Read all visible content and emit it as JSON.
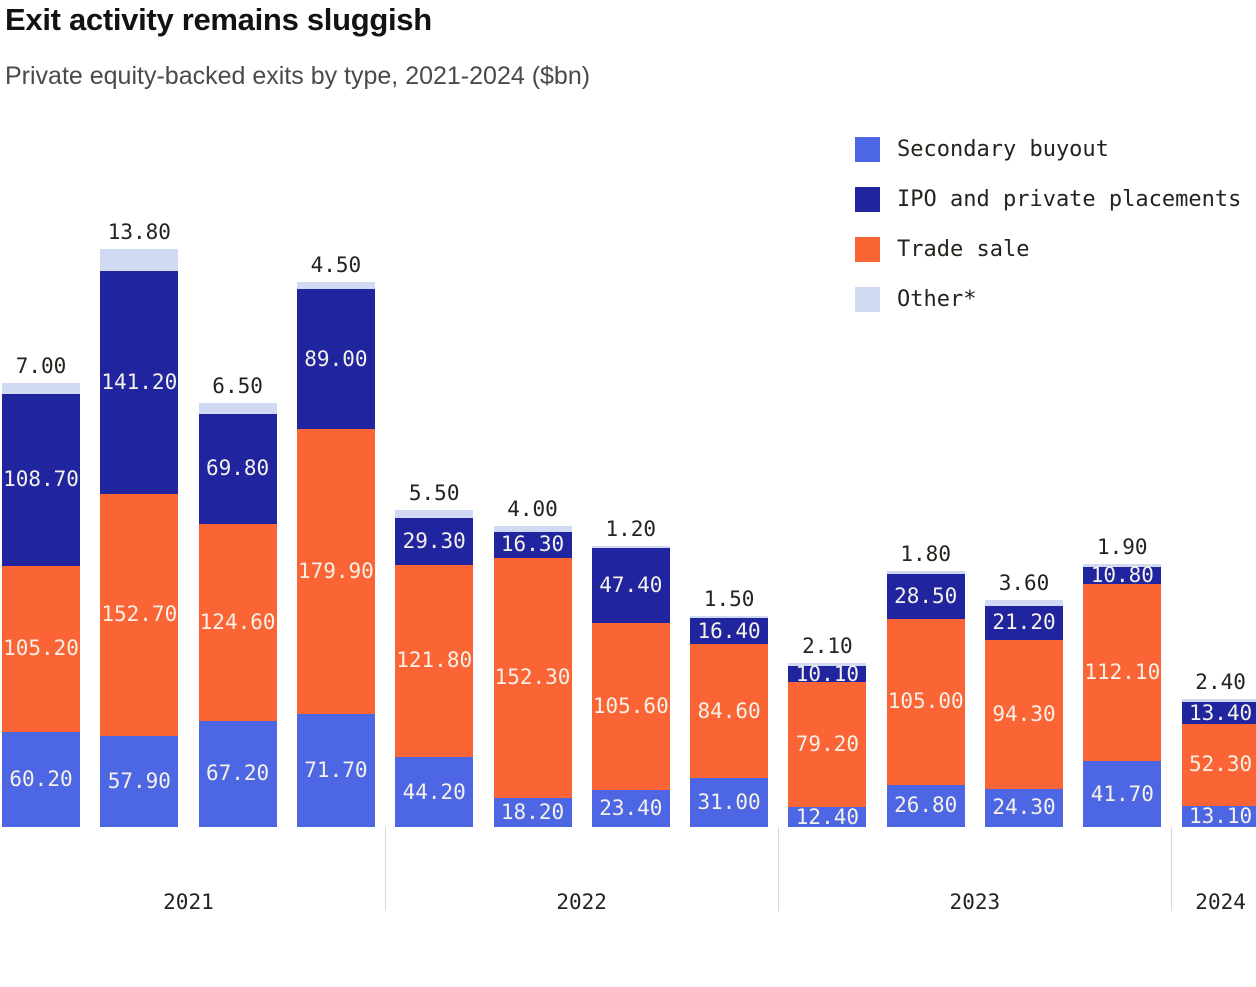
{
  "header": {
    "title": "Exit activity remains sluggish",
    "subtitle": "Private equity-backed exits by type, 2021-2024 ($bn)"
  },
  "legend": {
    "items": [
      {
        "label": "Secondary buyout",
        "color": "#4d67e4"
      },
      {
        "label": "IPO and private placements",
        "color": "#20249e"
      },
      {
        "label": "Trade sale",
        "color": "#fb6434"
      },
      {
        "label": "Other*",
        "color": "#d0daf3"
      }
    ]
  },
  "chart_data": {
    "type": "bar",
    "stacked": true,
    "title": "Exit activity remains sluggish",
    "subtitle": "Private equity-backed exits by type, 2021-2024 ($bn)",
    "unit": "$bn",
    "legend_position": "top-right",
    "grid": false,
    "value_label_decimals": 2,
    "groups": [
      {
        "label": "2021",
        "count": 4
      },
      {
        "label": "2022",
        "count": 4
      },
      {
        "label": "2023",
        "count": 4
      },
      {
        "label": "2024",
        "count": 1
      }
    ],
    "series_order_bottom_to_top": [
      "Secondary buyout",
      "Trade sale",
      "IPO and private placements",
      "Other*"
    ],
    "series": [
      {
        "name": "Secondary buyout",
        "color": "#4d67e4",
        "label_inside": true,
        "values": [
          60.2,
          57.9,
          67.2,
          71.7,
          44.2,
          18.2,
          23.4,
          31.0,
          12.4,
          26.8,
          24.3,
          41.7,
          13.1
        ]
      },
      {
        "name": "Trade sale",
        "color": "#fb6434",
        "label_inside": true,
        "values": [
          105.2,
          152.7,
          124.6,
          179.9,
          121.8,
          152.3,
          105.6,
          84.6,
          79.2,
          105.0,
          94.3,
          112.1,
          52.3
        ]
      },
      {
        "name": "IPO and private placements",
        "color": "#20249e",
        "label_inside": true,
        "values": [
          108.7,
          141.2,
          69.8,
          89.0,
          29.3,
          16.3,
          47.4,
          16.4,
          10.1,
          28.5,
          21.2,
          10.8,
          13.4
        ]
      },
      {
        "name": "Other*",
        "color": "#d0daf3",
        "label_inside": false,
        "values": [
          7.0,
          13.8,
          6.5,
          4.5,
          5.5,
          4.0,
          1.2,
          1.5,
          2.1,
          1.8,
          3.6,
          1.9,
          2.4
        ]
      }
    ],
    "text_colors": {
      "inside_label": "#f5f1e9",
      "outside_label": "#26221e",
      "axis_label": "#26221e"
    }
  }
}
